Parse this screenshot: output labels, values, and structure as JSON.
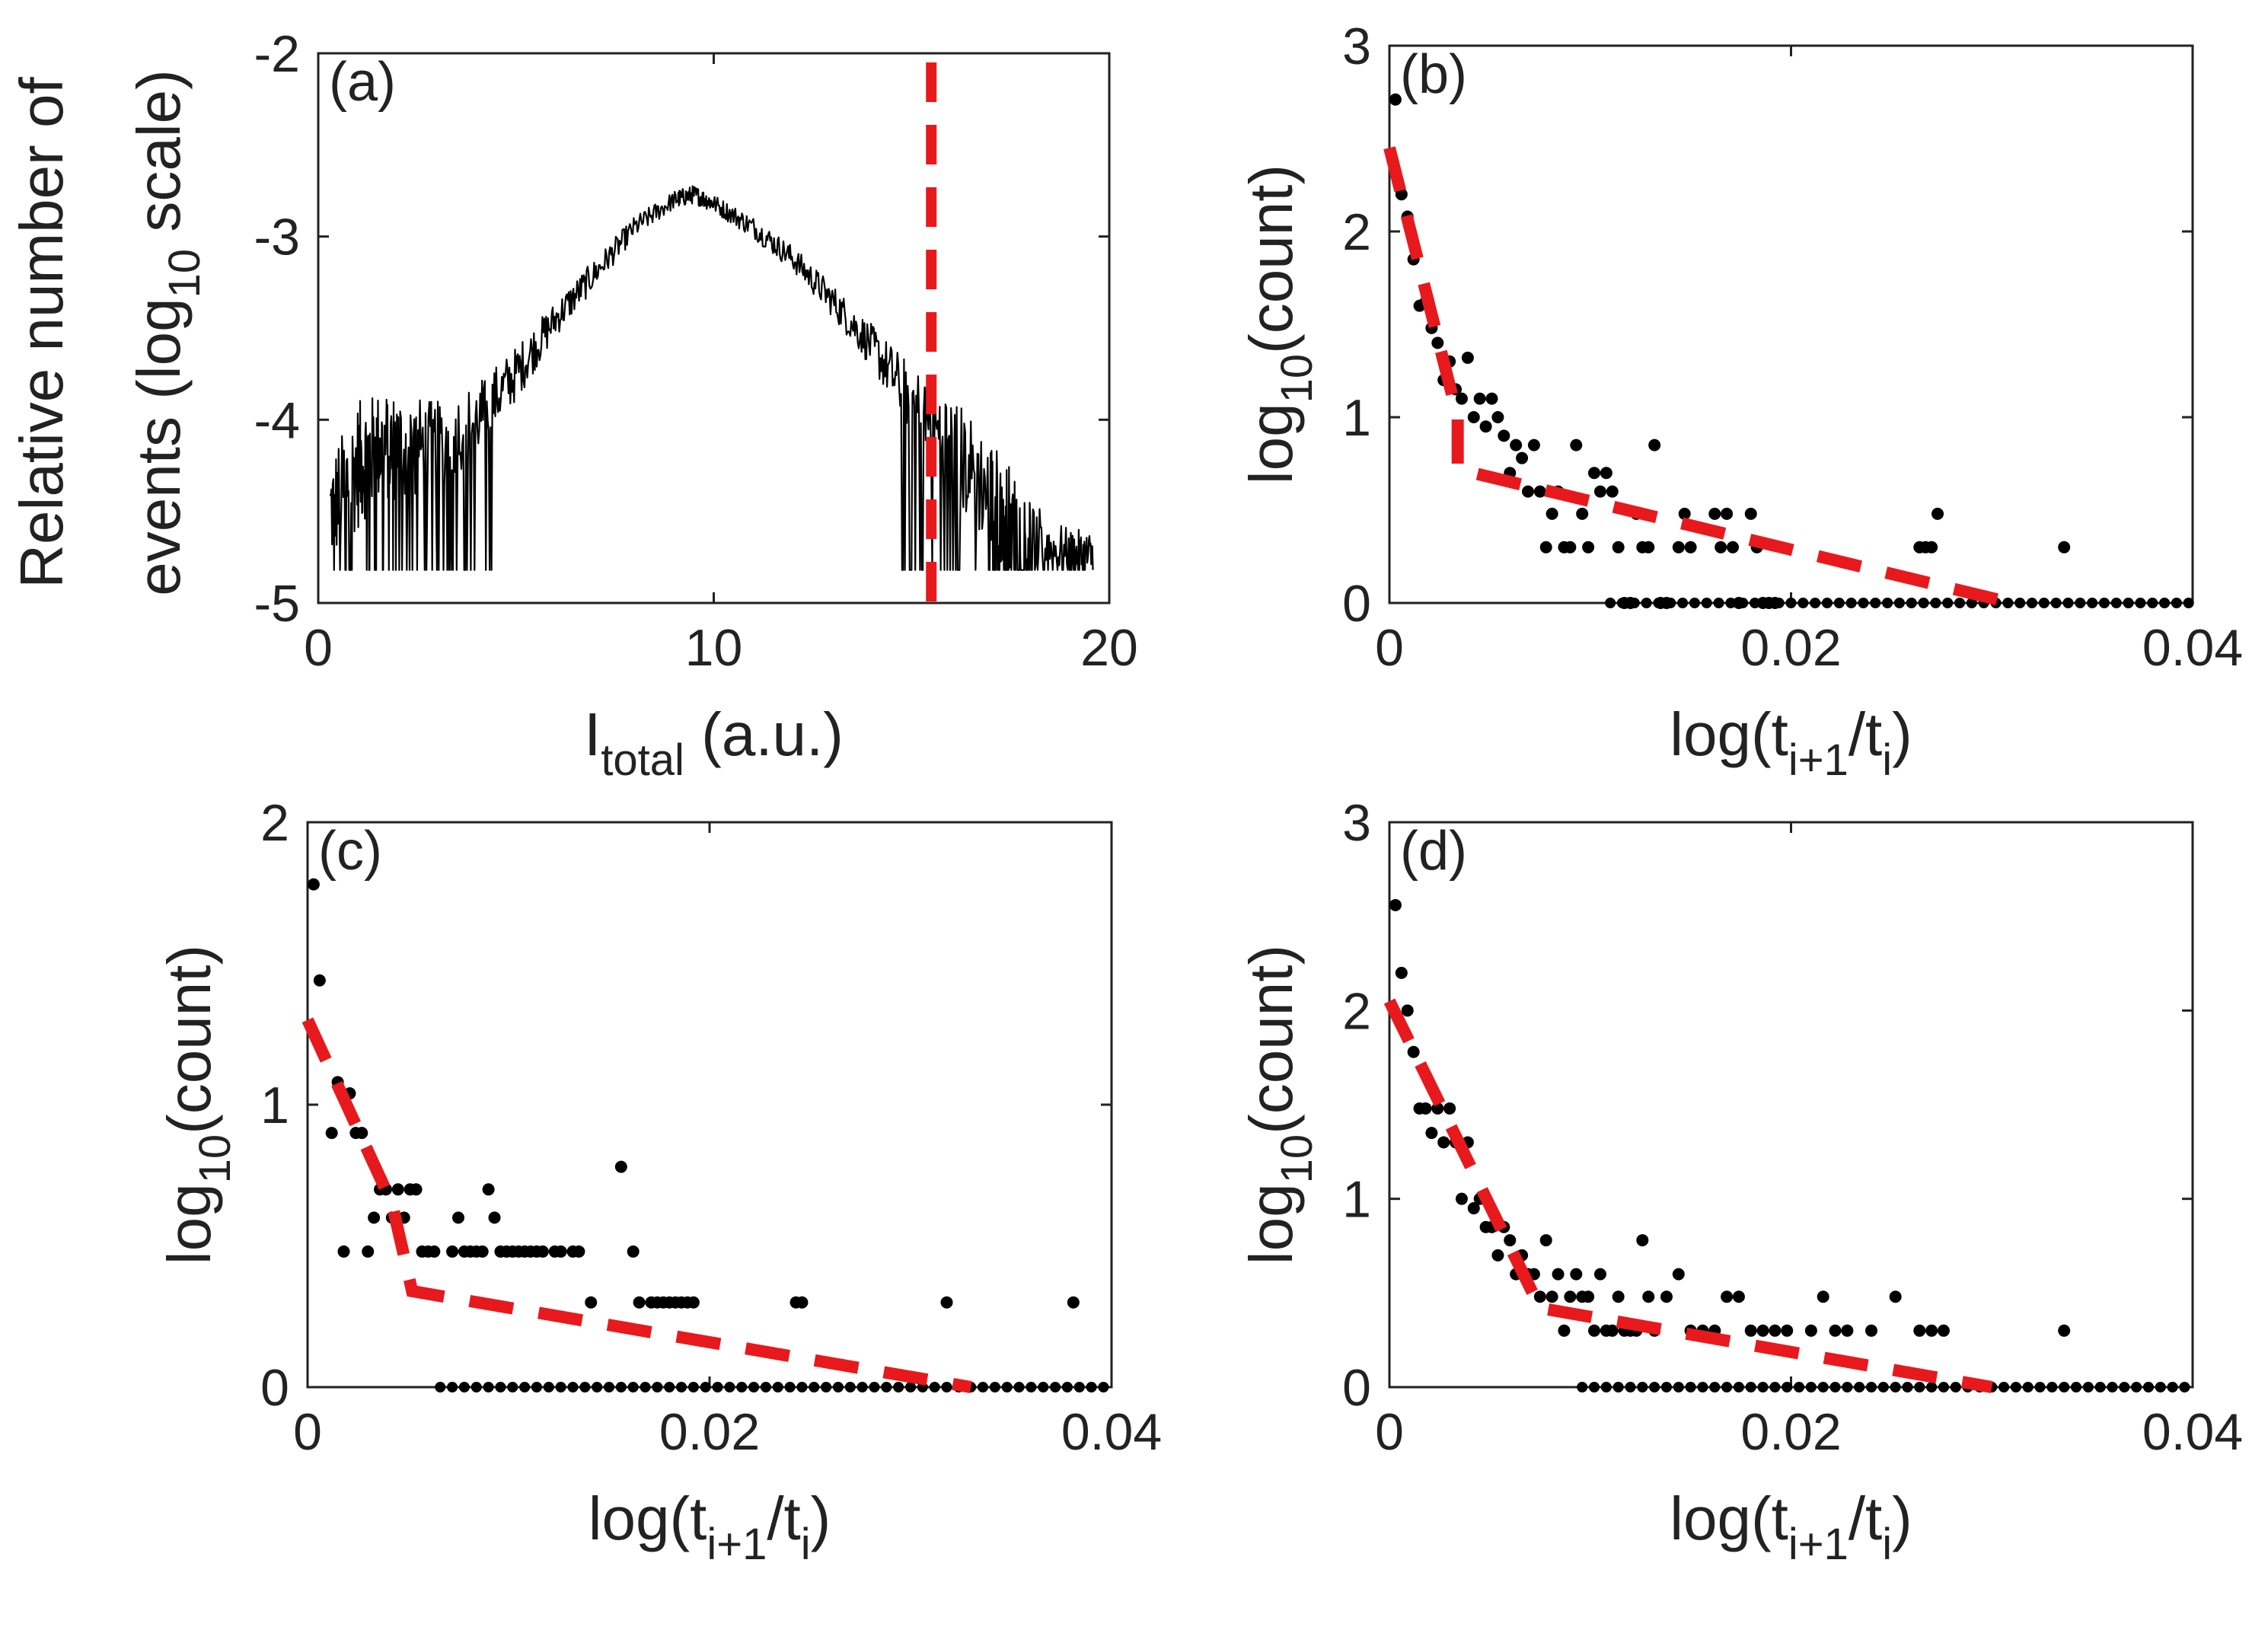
{
  "figure": {
    "background": "#ffffff",
    "axis_color": "#222222",
    "data_color": "#000000",
    "fit_color": "#e8191c"
  },
  "chart_data": [
    {
      "id": "a",
      "type": "line",
      "panel_label": "(a)",
      "xlabel": {
        "main": "I",
        "sub": "total",
        "rest": " (a.u.)"
      },
      "ylabel": {
        "line1": "Relative number of",
        "line2_main": "events (log",
        "line2_sub": "10",
        "line2_rest": " scale)"
      },
      "xlim": [
        0,
        20
      ],
      "ylim": [
        -5,
        -2
      ],
      "xticks": [
        0,
        10,
        20
      ],
      "yticks": [
        -5,
        -4,
        -3,
        -2
      ],
      "xticklabels": [
        "0",
        "10",
        "20"
      ],
      "yticklabels": [
        "-5",
        "-4",
        "-3",
        "-2"
      ],
      "series": [
        {
          "name": "histogram",
          "style": "noisy-line",
          "color": "#000000",
          "x": [
            0.3,
            1,
            1.5,
            2,
            3,
            4,
            5,
            6,
            7,
            8,
            9,
            9.5,
            10,
            11,
            12,
            13,
            14,
            15,
            16,
            17,
            17.5,
            18,
            19,
            19.6
          ],
          "y": [
            -4.5,
            -4.25,
            -4.15,
            -4.15,
            -4.15,
            -4.0,
            -3.75,
            -3.45,
            -3.2,
            -2.95,
            -2.8,
            -2.77,
            -2.82,
            -2.95,
            -3.12,
            -3.35,
            -3.6,
            -3.9,
            -4.15,
            -4.4,
            -4.55,
            -4.65,
            -4.75,
            -4.75
          ],
          "noise": [
            0.3,
            0.35,
            0.3,
            0.3,
            0.25,
            0.2,
            0.15,
            0.1,
            0.08,
            0.06,
            0.05,
            0.05,
            0.05,
            0.06,
            0.07,
            0.09,
            0.12,
            0.2,
            0.3,
            0.3,
            0.3,
            0.2,
            0.15,
            0.15
          ],
          "floor": -4.82
        },
        {
          "name": "threshold",
          "style": "dashed-vertical",
          "color": "#e8191c",
          "x": [
            15.5,
            15.5
          ],
          "y": [
            -2.05,
            -5.0
          ]
        }
      ]
    },
    {
      "id": "b",
      "type": "scatter",
      "panel_label": "(b)",
      "xlabel": {
        "main": "log(t",
        "sub1": "i+1",
        "mid": "/t",
        "sub2": "i",
        "rest": ")"
      },
      "ylabel": {
        "main": "log",
        "sub": "10",
        "rest": "(count)"
      },
      "xlim": [
        0,
        0.04
      ],
      "ylim": [
        0,
        3
      ],
      "xticks": [
        0,
        0.02,
        0.04
      ],
      "yticks": [
        0,
        1,
        2,
        3
      ],
      "xticklabels": [
        "0",
        "0.02",
        "0.04"
      ],
      "yticklabels": [
        "0",
        "1",
        "2",
        "3"
      ],
      "series": [
        {
          "name": "data",
          "color": "#000000",
          "x": [
            0.0003,
            0.0006,
            0.0009,
            0.0012,
            0.0015,
            0.0018,
            0.0021,
            0.0024,
            0.0027,
            0.003,
            0.0033,
            0.0036,
            0.0039,
            0.0042,
            0.0045,
            0.0048,
            0.0051,
            0.0054,
            0.0057,
            0.006,
            0.0063,
            0.0066,
            0.0069,
            0.0072,
            0.0075,
            0.0078,
            0.0081,
            0.0084,
            0.0087,
            0.009,
            0.0093,
            0.0096,
            0.0099,
            0.0102,
            0.0105,
            0.0108,
            0.0111,
            0.0114,
            0.0117,
            0.012,
            0.0123,
            0.0126,
            0.0129,
            0.0132,
            0.0135,
            0.0138,
            0.0144,
            0.0147,
            0.015,
            0.0162,
            0.0165,
            0.0168,
            0.0171,
            0.0174,
            0.018,
            0.0183,
            0.0186,
            0.0189,
            0.0192,
            0.0264,
            0.0267,
            0.027,
            0.0273,
            0.0336
          ],
          "y": [
            2.71,
            2.2,
            2.08,
            1.85,
            1.6,
            1.62,
            1.48,
            1.4,
            1.2,
            1.3,
            1.15,
            1.1,
            1.32,
            1.0,
            1.1,
            0.95,
            1.1,
            1.0,
            0.9,
            0.7,
            0.85,
            0.78,
            0.6,
            0.85,
            0.6,
            0.3,
            0.48,
            0.6,
            0.3,
            0.3,
            0.85,
            0.48,
            0.3,
            0.7,
            0.6,
            0.7,
            0.6,
            0.3,
            0.0,
            0.0,
            0.48,
            0.3,
            0.3,
            0.85,
            0.0,
            0.0,
            0.3,
            0.48,
            0.3,
            0.48,
            0.3,
            0.48,
            0.3,
            0.0,
            0.48,
            0.3,
            0.0,
            0.0,
            0.0,
            0.3,
            0.3,
            0.3,
            0.48,
            0.3
          ],
          "zero_row": {
            "start": 0.011,
            "end": 0.04,
            "step": 0.0006
          }
        },
        {
          "name": "fit",
          "style": "dashed",
          "color": "#e8191c",
          "x": [
            0,
            0.0034,
            0.0034,
            0.031
          ],
          "y": [
            2.45,
            1.0,
            0.72,
            0.0
          ]
        }
      ]
    },
    {
      "id": "c",
      "type": "scatter",
      "panel_label": "(c)",
      "xlabel": {
        "main": "log(t",
        "sub1": "i+1",
        "mid": "/t",
        "sub2": "i",
        "rest": ")"
      },
      "ylabel": {
        "main": "log",
        "sub": "10",
        "rest": "(count)"
      },
      "xlim": [
        0,
        0.04
      ],
      "ylim": [
        0,
        2
      ],
      "xticks": [
        0,
        0.02,
        0.04
      ],
      "yticks": [
        0,
        1,
        2
      ],
      "xticklabels": [
        "0",
        "0.02",
        "0.04"
      ],
      "yticklabels": [
        "0",
        "1",
        "2"
      ],
      "series": [
        {
          "name": "data",
          "color": "#000000",
          "x": [
            0.0003,
            0.0006,
            0.0012,
            0.0015,
            0.0018,
            0.0021,
            0.0024,
            0.0027,
            0.003,
            0.0033,
            0.0036,
            0.0039,
            0.0042,
            0.0045,
            0.0048,
            0.0051,
            0.0054,
            0.0057,
            0.006,
            0.0063,
            0.0072,
            0.0075,
            0.0078,
            0.0081,
            0.0084,
            0.0087,
            0.009,
            0.0093,
            0.0096,
            0.0099,
            0.0102,
            0.0105,
            0.0108,
            0.0111,
            0.0114,
            0.0117,
            0.0123,
            0.0126,
            0.0132,
            0.0135,
            0.0141,
            0.0156,
            0.0162,
            0.0165,
            0.0171,
            0.0174,
            0.0177,
            0.018,
            0.0183,
            0.0186,
            0.0189,
            0.0192,
            0.0243,
            0.0246,
            0.0318,
            0.0381
          ],
          "y": [
            1.78,
            1.44,
            0.9,
            1.08,
            0.48,
            1.04,
            0.9,
            0.9,
            0.48,
            0.6,
            0.7,
            0.7,
            0.6,
            0.7,
            0.6,
            0.7,
            0.7,
            0.48,
            0.48,
            0.48,
            0.48,
            0.6,
            0.48,
            0.48,
            0.48,
            0.48,
            0.7,
            0.6,
            0.48,
            0.48,
            0.48,
            0.48,
            0.48,
            0.48,
            0.48,
            0.48,
            0.48,
            0.48,
            0.48,
            0.48,
            0.3,
            0.78,
            0.48,
            0.3,
            0.3,
            0.3,
            0.3,
            0.3,
            0.3,
            0.3,
            0.3,
            0.3,
            0.3,
            0.3,
            0.3,
            0.3
          ],
          "zero_row": {
            "start": 0.0066,
            "end": 0.04,
            "step": 0.0006
          }
        },
        {
          "name": "fit",
          "style": "dashed",
          "color": "#e8191c",
          "x": [
            0,
            0.0042,
            0.0052,
            0.033
          ],
          "y": [
            1.3,
            0.65,
            0.34,
            0.0
          ]
        }
      ]
    },
    {
      "id": "d",
      "type": "scatter",
      "panel_label": "(d)",
      "xlabel": {
        "main": "log(t",
        "sub1": "i+1",
        "mid": "/t",
        "sub2": "i",
        "rest": ")"
      },
      "ylabel": {
        "main": "log",
        "sub": "10",
        "rest": "(count)"
      },
      "xlim": [
        0,
        0.04
      ],
      "ylim": [
        0,
        3
      ],
      "xticks": [
        0,
        0.02,
        0.04
      ],
      "yticks": [
        0,
        1,
        2,
        3
      ],
      "xticklabels": [
        "0",
        "0.02",
        "0.04"
      ],
      "yticklabels": [
        "0",
        "1",
        "2",
        "3"
      ],
      "series": [
        {
          "name": "data",
          "color": "#000000",
          "x": [
            0.0003,
            0.0006,
            0.0009,
            0.0012,
            0.0015,
            0.0018,
            0.0021,
            0.0024,
            0.0027,
            0.003,
            0.0033,
            0.0036,
            0.0039,
            0.0042,
            0.0045,
            0.0048,
            0.0051,
            0.0054,
            0.0057,
            0.006,
            0.0063,
            0.0066,
            0.0069,
            0.0072,
            0.0075,
            0.0078,
            0.0081,
            0.0084,
            0.0087,
            0.009,
            0.0093,
            0.0096,
            0.0099,
            0.0102,
            0.0105,
            0.0108,
            0.0111,
            0.0114,
            0.0117,
            0.012,
            0.0123,
            0.0126,
            0.0129,
            0.0132,
            0.0138,
            0.0144,
            0.015,
            0.0156,
            0.0162,
            0.0168,
            0.0174,
            0.018,
            0.0186,
            0.0192,
            0.0198,
            0.021,
            0.0216,
            0.0222,
            0.0228,
            0.024,
            0.0252,
            0.0264,
            0.027,
            0.0276,
            0.0336
          ],
          "y": [
            2.56,
            2.2,
            2.0,
            1.78,
            1.48,
            1.48,
            1.35,
            1.48,
            1.3,
            1.48,
            1.3,
            1.0,
            1.3,
            0.95,
            1.0,
            0.85,
            0.85,
            0.7,
            0.85,
            0.78,
            0.6,
            0.7,
            0.6,
            0.6,
            0.48,
            0.78,
            0.48,
            0.6,
            0.3,
            0.48,
            0.6,
            0.48,
            0.48,
            0.3,
            0.6,
            0.3,
            0.3,
            0.48,
            0.3,
            0.3,
            0.3,
            0.78,
            0.48,
            0.3,
            0.48,
            0.6,
            0.3,
            0.3,
            0.3,
            0.48,
            0.48,
            0.3,
            0.3,
            0.3,
            0.3,
            0.3,
            0.48,
            0.3,
            0.3,
            0.3,
            0.48,
            0.3,
            0.3,
            0.3,
            0.3
          ],
          "zero_row": {
            "start": 0.0096,
            "end": 0.04,
            "step": 0.0006
          }
        },
        {
          "name": "fit",
          "style": "dashed",
          "color": "#e8191c",
          "x": [
            0,
            0.0075,
            0.03
          ],
          "y": [
            2.05,
            0.42,
            0.0
          ]
        }
      ]
    }
  ]
}
